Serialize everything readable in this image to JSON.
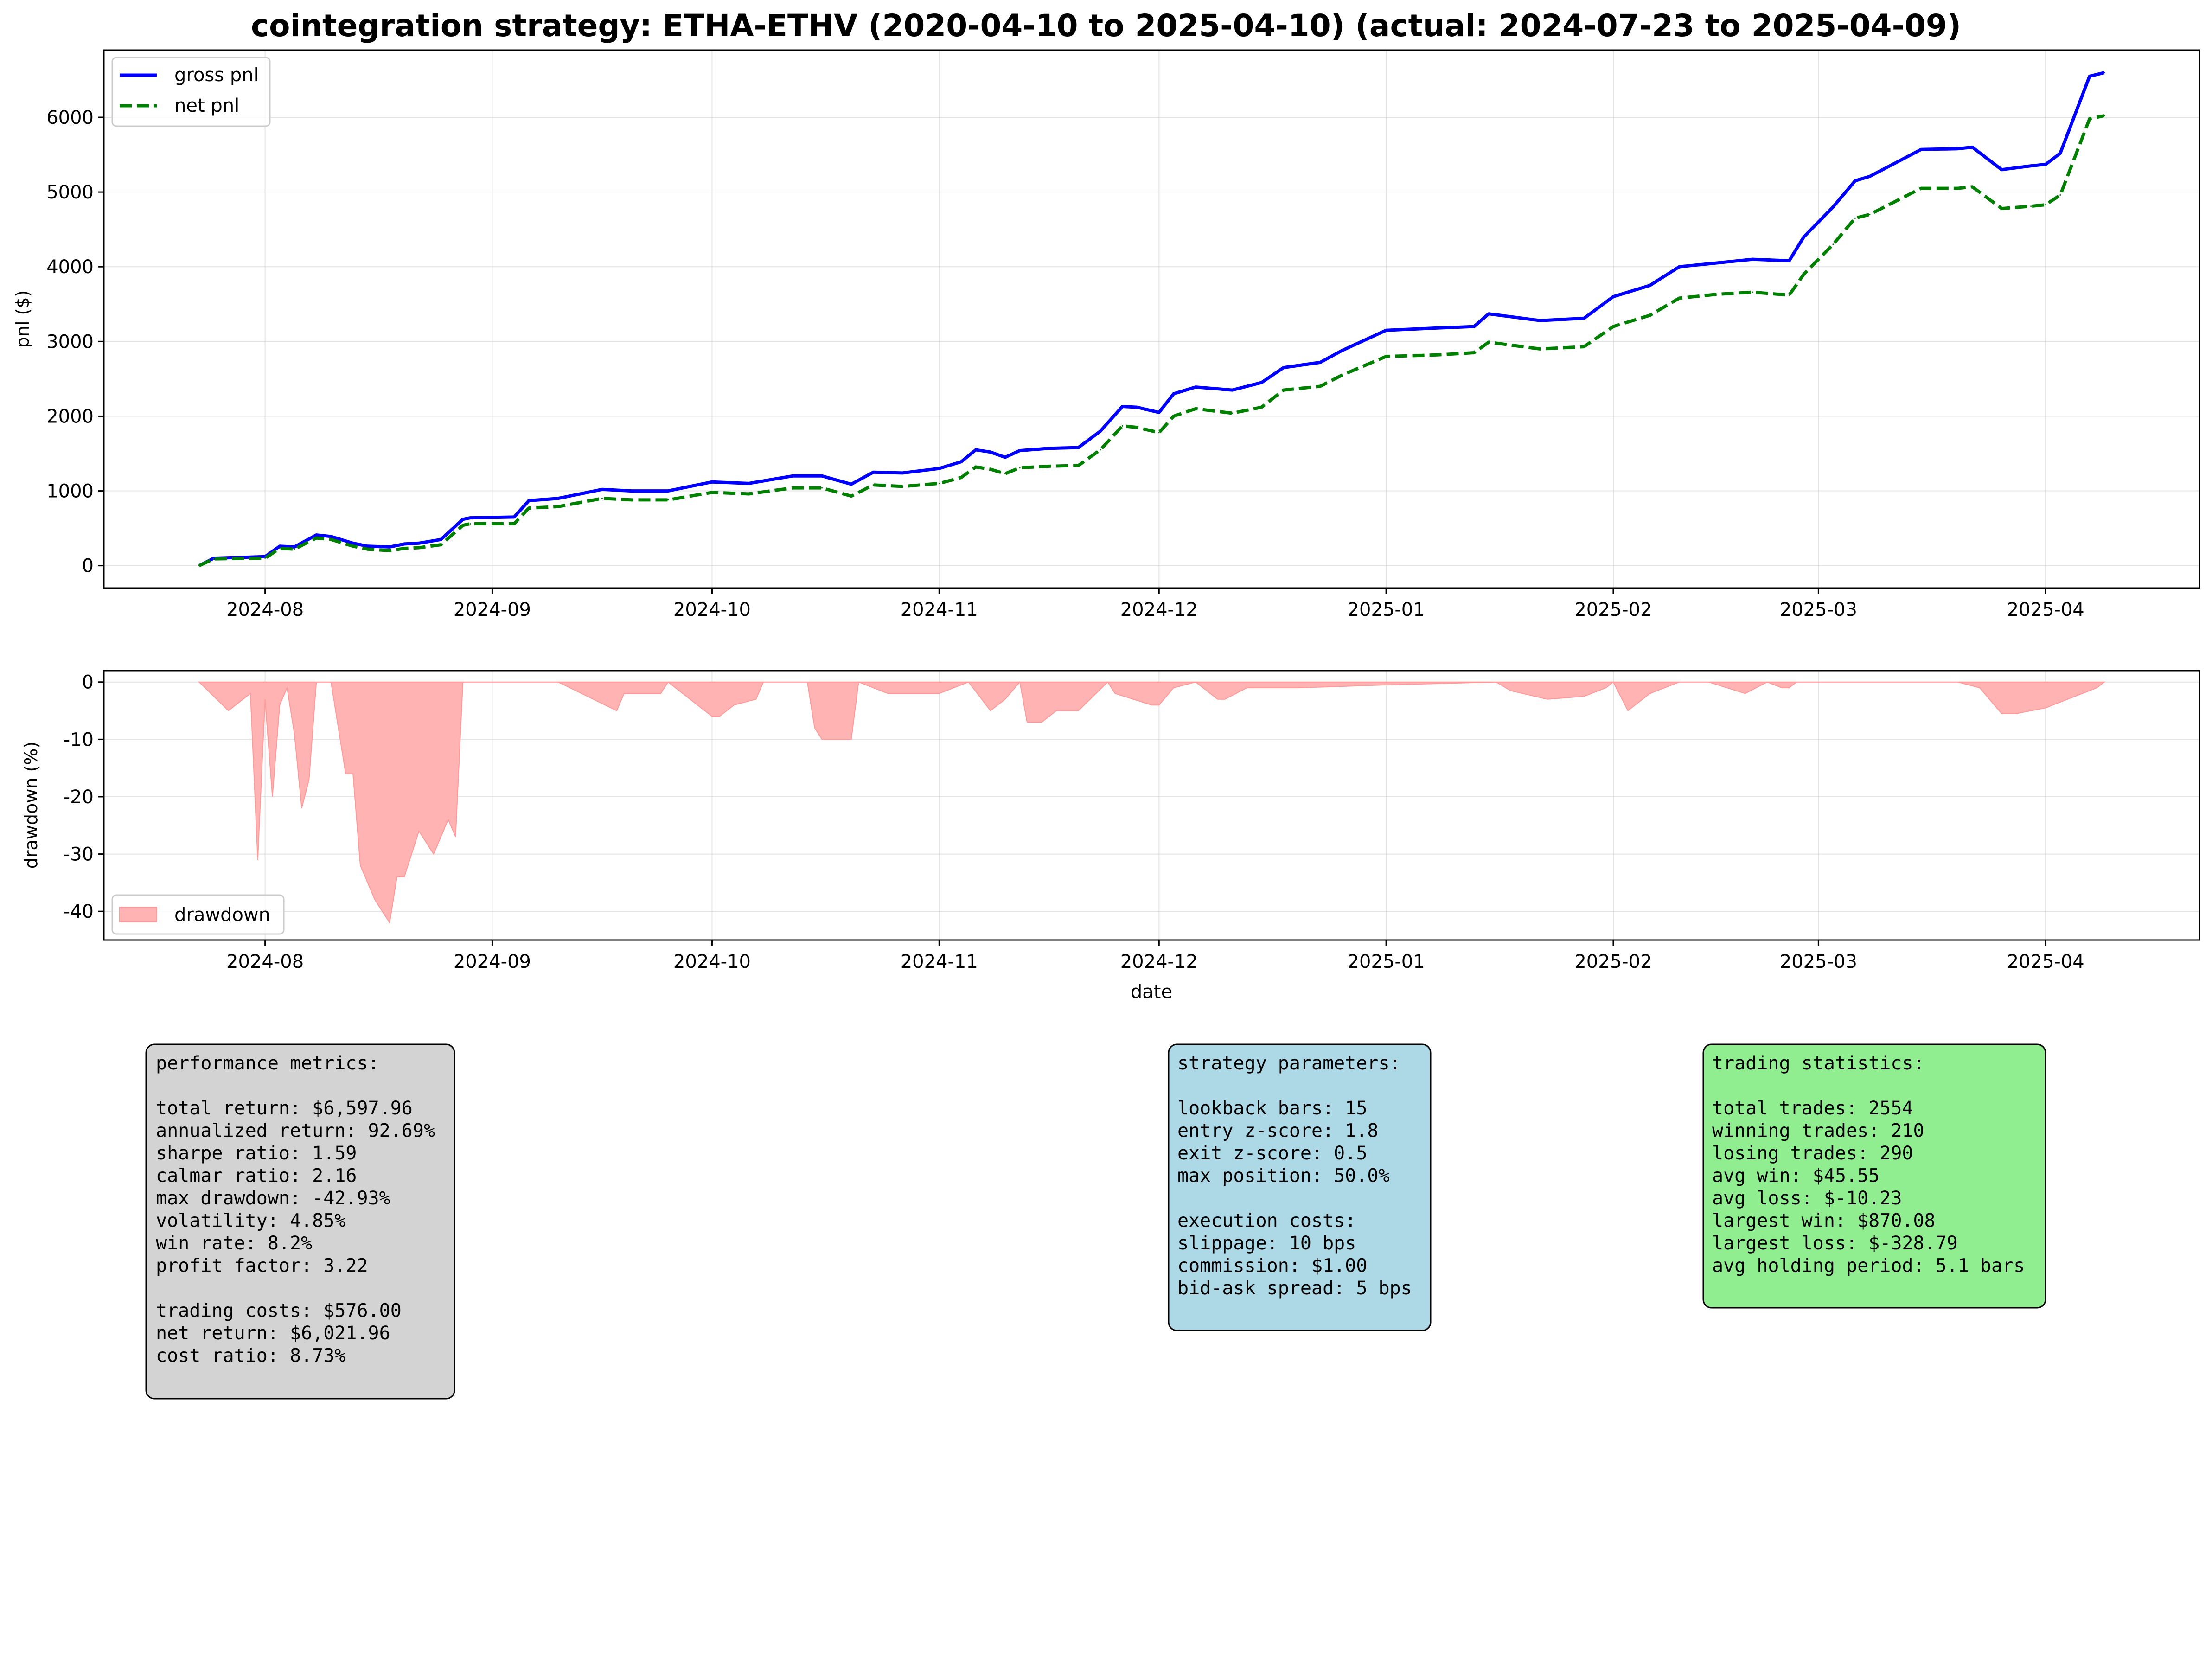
{
  "title": "cointegration strategy: ETHA-ETHV (2020-04-10 to 2025-04-10) (actual: 2024-07-23 to 2025-04-09)",
  "chart_data": [
    {
      "type": "line",
      "ylabel": "pnl ($)",
      "xlabel": "",
      "ylim": [
        -300,
        6900
      ],
      "yticks": [
        0,
        1000,
        2000,
        3000,
        4000,
        5000,
        6000
      ],
      "x_ticks": [
        "2024-08",
        "2024-09",
        "2024-10",
        "2024-11",
        "2024-12",
        "2025-01",
        "2025-02",
        "2025-03",
        "2025-04"
      ],
      "grid": true,
      "legend_position": "top-left",
      "series": [
        {
          "name": "gross pnl",
          "color": "#0000ff",
          "style": "solid",
          "x": [
            "2024-07-23",
            "2024-07-25",
            "2024-08-01",
            "2024-08-03",
            "2024-08-05",
            "2024-08-08",
            "2024-08-10",
            "2024-08-13",
            "2024-08-15",
            "2024-08-18",
            "2024-08-20",
            "2024-08-22",
            "2024-08-25",
            "2024-08-28",
            "2024-08-29",
            "2024-09-04",
            "2024-09-06",
            "2024-09-10",
            "2024-09-16",
            "2024-09-20",
            "2024-09-25",
            "2024-10-01",
            "2024-10-06",
            "2024-10-12",
            "2024-10-16",
            "2024-10-20",
            "2024-10-23",
            "2024-10-27",
            "2024-11-01",
            "2024-11-04",
            "2024-11-06",
            "2024-11-08",
            "2024-11-10",
            "2024-11-12",
            "2024-11-16",
            "2024-11-20",
            "2024-11-23",
            "2024-11-26",
            "2024-11-28",
            "2024-12-01",
            "2024-12-03",
            "2024-12-06",
            "2024-12-11",
            "2024-12-15",
            "2024-12-18",
            "2024-12-23",
            "2024-12-26",
            "2025-01-01",
            "2025-01-08",
            "2025-01-13",
            "2025-01-15",
            "2025-01-22",
            "2025-01-28",
            "2025-02-01",
            "2025-02-06",
            "2025-02-10",
            "2025-02-15",
            "2025-02-20",
            "2025-02-25",
            "2025-02-27",
            "2025-03-03",
            "2025-03-06",
            "2025-03-08",
            "2025-03-15",
            "2025-03-20",
            "2025-03-22",
            "2025-03-26",
            "2025-03-30",
            "2025-04-01",
            "2025-04-03",
            "2025-04-07",
            "2025-04-09"
          ],
          "values": [
            0,
            100,
            120,
            260,
            250,
            410,
            390,
            300,
            260,
            250,
            290,
            300,
            350,
            620,
            640,
            650,
            870,
            900,
            1020,
            1000,
            1000,
            1120,
            1100,
            1200,
            1200,
            1090,
            1250,
            1240,
            1300,
            1390,
            1550,
            1520,
            1450,
            1540,
            1570,
            1580,
            1800,
            2130,
            2120,
            2050,
            2300,
            2390,
            2350,
            2450,
            2650,
            2720,
            2880,
            3150,
            3180,
            3200,
            3370,
            3280,
            3310,
            3600,
            3750,
            4000,
            4050,
            4100,
            4080,
            4400,
            4800,
            5150,
            5210,
            5570,
            5580,
            5600,
            5300,
            5350,
            5370,
            5520,
            6550,
            6598
          ]
        },
        {
          "name": "net pnl",
          "color": "#008000",
          "style": "dashed",
          "x": [
            "2024-07-23",
            "2024-07-25",
            "2024-08-01",
            "2024-08-03",
            "2024-08-05",
            "2024-08-08",
            "2024-08-10",
            "2024-08-13",
            "2024-08-15",
            "2024-08-18",
            "2024-08-20",
            "2024-08-22",
            "2024-08-25",
            "2024-08-28",
            "2024-08-29",
            "2024-09-04",
            "2024-09-06",
            "2024-09-10",
            "2024-09-16",
            "2024-09-20",
            "2024-09-25",
            "2024-10-01",
            "2024-10-06",
            "2024-10-12",
            "2024-10-16",
            "2024-10-20",
            "2024-10-23",
            "2024-10-27",
            "2024-11-01",
            "2024-11-04",
            "2024-11-06",
            "2024-11-08",
            "2024-11-10",
            "2024-11-12",
            "2024-11-16",
            "2024-11-20",
            "2024-11-23",
            "2024-11-26",
            "2024-11-28",
            "2024-12-01",
            "2024-12-03",
            "2024-12-06",
            "2024-12-11",
            "2024-12-15",
            "2024-12-18",
            "2024-12-23",
            "2024-12-26",
            "2025-01-01",
            "2025-01-08",
            "2025-01-13",
            "2025-01-15",
            "2025-01-22",
            "2025-01-28",
            "2025-02-01",
            "2025-02-06",
            "2025-02-10",
            "2025-02-15",
            "2025-02-20",
            "2025-02-25",
            "2025-02-27",
            "2025-03-03",
            "2025-03-06",
            "2025-03-08",
            "2025-03-15",
            "2025-03-20",
            "2025-03-22",
            "2025-03-26",
            "2025-03-30",
            "2025-04-01",
            "2025-04-03",
            "2025-04-07",
            "2025-04-09"
          ],
          "values": [
            0,
            90,
            100,
            230,
            220,
            370,
            350,
            260,
            220,
            200,
            230,
            240,
            280,
            540,
            560,
            560,
            770,
            790,
            900,
            880,
            880,
            980,
            960,
            1040,
            1040,
            930,
            1080,
            1060,
            1100,
            1180,
            1320,
            1290,
            1230,
            1310,
            1330,
            1340,
            1550,
            1870,
            1850,
            1780,
            2000,
            2100,
            2040,
            2120,
            2350,
            2400,
            2550,
            2800,
            2820,
            2850,
            2990,
            2900,
            2930,
            3200,
            3350,
            3580,
            3630,
            3660,
            3620,
            3900,
            4300,
            4650,
            4700,
            5050,
            5050,
            5070,
            4780,
            4810,
            4830,
            4960,
            5980,
            6022
          ]
        }
      ]
    },
    {
      "type": "area",
      "ylabel": "drawdown (%)",
      "xlabel": "date",
      "ylim": [
        -45,
        2
      ],
      "yticks": [
        0,
        -10,
        -20,
        -30,
        -40
      ],
      "x_ticks": [
        "2024-08",
        "2024-09",
        "2024-10",
        "2024-11",
        "2024-12",
        "2025-01",
        "2025-02",
        "2025-03",
        "2025-04"
      ],
      "grid": true,
      "legend_position": "bottom-left",
      "series": [
        {
          "name": "drawdown",
          "color": "#ffb3b3",
          "x": [
            "2024-07-23",
            "2024-07-27",
            "2024-07-30",
            "2024-07-31",
            "2024-08-01",
            "2024-08-02",
            "2024-08-03",
            "2024-08-04",
            "2024-08-05",
            "2024-08-06",
            "2024-08-07",
            "2024-08-08",
            "2024-08-10",
            "2024-08-12",
            "2024-08-13",
            "2024-08-14",
            "2024-08-16",
            "2024-08-18",
            "2024-08-19",
            "2024-08-20",
            "2024-08-22",
            "2024-08-24",
            "2024-08-26",
            "2024-08-27",
            "2024-08-28",
            "2024-08-29",
            "2024-09-10",
            "2024-09-18",
            "2024-09-19",
            "2024-09-24",
            "2024-09-25",
            "2024-10-01",
            "2024-10-02",
            "2024-10-04",
            "2024-10-07",
            "2024-10-08",
            "2024-10-14",
            "2024-10-15",
            "2024-10-16",
            "2024-10-20",
            "2024-10-21",
            "2024-10-25",
            "2024-11-01",
            "2024-11-05",
            "2024-11-08",
            "2024-11-10",
            "2024-11-12",
            "2024-11-13",
            "2024-11-15",
            "2024-11-17",
            "2024-11-20",
            "2024-11-24",
            "2024-11-25",
            "2024-11-30",
            "2024-12-01",
            "2024-12-03",
            "2024-12-06",
            "2024-12-09",
            "2024-12-10",
            "2024-12-13",
            "2024-12-17",
            "2024-12-20",
            "2025-01-01",
            "2025-01-16",
            "2025-01-18",
            "2025-01-23",
            "2025-01-28",
            "2025-01-31",
            "2025-02-01",
            "2025-02-03",
            "2025-02-06",
            "2025-02-10",
            "2025-02-14",
            "2025-02-19",
            "2025-02-22",
            "2025-02-24",
            "2025-02-25",
            "2025-02-26",
            "2025-03-20",
            "2025-03-23",
            "2025-03-26",
            "2025-03-28",
            "2025-04-01",
            "2025-04-03",
            "2025-04-06",
            "2025-04-08",
            "2025-04-09"
          ],
          "values": [
            0,
            -5,
            -2,
            -31,
            -3,
            -20,
            -4,
            -1,
            -9,
            -22,
            -17,
            0,
            0,
            -16,
            -16,
            -32,
            -38,
            -42,
            -34,
            -34,
            -26,
            -30,
            -24,
            -27,
            0,
            0,
            0,
            -5,
            -2,
            -2,
            0,
            -6,
            -6,
            -4,
            -3,
            0,
            0,
            -8,
            -10,
            -10,
            0,
            -2,
            -2,
            0,
            -5,
            -3,
            0,
            -7,
            -7,
            -5,
            -5,
            0,
            -2,
            -4,
            -4,
            -1,
            0,
            -3,
            -3,
            -1,
            -1,
            -1,
            -0.5,
            0,
            -1.5,
            -3,
            -2.5,
            -1,
            0,
            -5,
            -2,
            0,
            0,
            -2,
            0,
            -1,
            -1,
            0,
            0,
            -1,
            -5.5,
            -5.5,
            -4.5,
            -3.5,
            -2,
            -1,
            0
          ]
        }
      ]
    }
  ],
  "panels": {
    "performance": {
      "color": "#d3d3d3",
      "lines": [
        "performance metrics:",
        "",
        "total return: $6,597.96",
        "annualized return: 92.69%",
        "sharpe ratio: 1.59",
        "calmar ratio: 2.16",
        "max drawdown: -42.93%",
        "volatility: 4.85%",
        "win rate: 8.2%",
        "profit factor: 3.22",
        "",
        "trading costs: $576.00",
        "net return: $6,021.96",
        "cost ratio: 8.73%"
      ]
    },
    "strategy": {
      "color": "#add8e6",
      "lines": [
        "strategy parameters:",
        "",
        "lookback bars: 15",
        "entry z-score: 1.8",
        "exit z-score: 0.5",
        "max position: 50.0%",
        "",
        "execution costs:",
        "slippage: 10 bps",
        "commission: $1.00",
        "bid-ask spread: 5 bps"
      ]
    },
    "trading": {
      "color": "#90ee90",
      "lines": [
        "trading statistics:",
        "",
        "total trades: 2554",
        "winning trades: 210",
        "losing trades: 290",
        "avg win: $45.55",
        "avg loss: $-10.23",
        "largest win: $870.08",
        "largest loss: $-328.79",
        "avg holding period: 5.1 bars"
      ]
    }
  }
}
